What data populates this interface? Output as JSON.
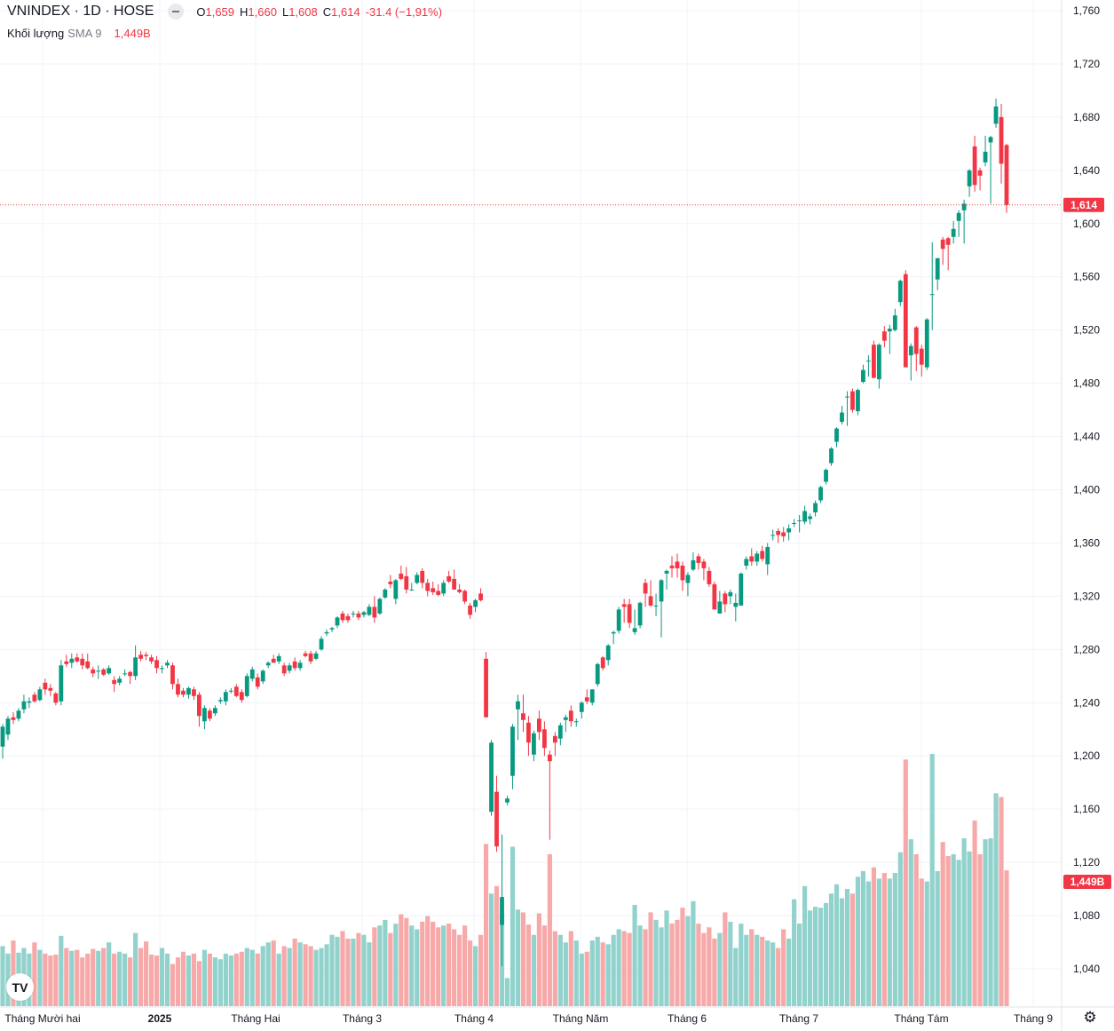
{
  "header": {
    "symbol_line": "VNINDEX · 1D · HOSE",
    "open_label": "O",
    "open": "1,659",
    "high_label": "H",
    "high": "1,660",
    "low_label": "L",
    "low": "1,608",
    "close_label": "C",
    "close": "1,614",
    "change": "-31.4 (−1,91%)"
  },
  "volume_legend": {
    "name": "Khối lượng",
    "sma": "SMA 9",
    "value": "1,449B"
  },
  "icons": {
    "logo": "tradingview-logo",
    "logo_text": "TV",
    "settings": "gear-icon",
    "hide": "minus-icon"
  },
  "colors": {
    "up": "#089981",
    "down": "#f23645",
    "vol_up": "#92d2cc",
    "vol_down": "#f7a9a9",
    "grid": "#f0f3fa"
  },
  "chart_data": {
    "type": "candlestick",
    "title": "VNINDEX · 1D · HOSE",
    "price_axis": {
      "min": 1040,
      "max": 1760,
      "step": 40,
      "tick_labels": [
        "1,760",
        "1,720",
        "1,680",
        "1,640",
        "1,600",
        "1,560",
        "1,520",
        "1,480",
        "1,440",
        "1,400",
        "1,360",
        "1,320",
        "1,280",
        "1,240",
        "1,200",
        "1,160",
        "1,120",
        "1,080",
        "1,040"
      ]
    },
    "x_tick_labels": [
      "Tháng Mười hai",
      "2025",
      "Tháng Hai",
      "Tháng 3",
      "Tháng 4",
      "Tháng Năm",
      "Tháng 6",
      "Tháng 7",
      "Tháng Tám",
      "Tháng 9"
    ],
    "last_price": 1614,
    "last_price_label": "1,614",
    "last_volume_label": "1,449B",
    "volume_unit": "millions",
    "volume_max_axis": 1449,
    "candles_ohlc": [
      [
        1207,
        1224,
        1198,
        1222
      ],
      [
        1216,
        1230,
        1212,
        1228
      ],
      [
        1229,
        1233,
        1224,
        1227
      ],
      [
        1228,
        1236,
        1226,
        1234
      ],
      [
        1235,
        1246,
        1232,
        1241
      ],
      [
        1240,
        1244,
        1236,
        1241
      ],
      [
        1246,
        1248,
        1240,
        1241
      ],
      [
        1242,
        1252,
        1241,
        1250
      ],
      [
        1255,
        1258,
        1246,
        1250
      ],
      [
        1251,
        1254,
        1245,
        1249
      ],
      [
        1247,
        1248,
        1238,
        1240
      ],
      [
        1241,
        1272,
        1238,
        1268
      ],
      [
        1271,
        1276,
        1267,
        1269
      ],
      [
        1270,
        1277,
        1266,
        1273
      ],
      [
        1274,
        1277,
        1270,
        1271
      ],
      [
        1273,
        1277,
        1265,
        1268
      ],
      [
        1271,
        1277,
        1265,
        1266
      ],
      [
        1265,
        1267,
        1259,
        1262
      ],
      [
        1264,
        1268,
        1258,
        1264
      ],
      [
        1265,
        1266,
        1260,
        1261
      ],
      [
        1262,
        1268,
        1261,
        1266
      ],
      [
        1257,
        1260,
        1248,
        1254
      ],
      [
        1255,
        1260,
        1253,
        1258
      ],
      [
        1262,
        1265,
        1260,
        1262
      ],
      [
        1263,
        1264,
        1254,
        1260
      ],
      [
        1260,
        1283,
        1257,
        1274
      ],
      [
        1276,
        1279,
        1271,
        1273
      ],
      [
        1276,
        1278,
        1272,
        1275
      ],
      [
        1274,
        1276,
        1269,
        1271
      ],
      [
        1272,
        1275,
        1262,
        1266
      ],
      [
        1266,
        1268,
        1262,
        1266
      ],
      [
        1268,
        1272,
        1266,
        1270
      ],
      [
        1268,
        1270,
        1250,
        1254
      ],
      [
        1254,
        1258,
        1244,
        1246
      ],
      [
        1249,
        1251,
        1244,
        1246
      ],
      [
        1246,
        1252,
        1243,
        1251
      ],
      [
        1250,
        1252,
        1242,
        1245
      ],
      [
        1246,
        1248,
        1222,
        1230
      ],
      [
        1226,
        1238,
        1220,
        1236
      ],
      [
        1234,
        1236,
        1226,
        1228
      ],
      [
        1232,
        1238,
        1230,
        1236
      ],
      [
        1241,
        1244,
        1239,
        1242
      ],
      [
        1241,
        1250,
        1238,
        1248
      ],
      [
        1249,
        1251,
        1247,
        1249
      ],
      [
        1252,
        1254,
        1244,
        1245
      ],
      [
        1248,
        1250,
        1240,
        1242
      ],
      [
        1245,
        1262,
        1244,
        1260
      ],
      [
        1258,
        1267,
        1256,
        1265
      ],
      [
        1259,
        1262,
        1250,
        1252
      ],
      [
        1256,
        1265,
        1254,
        1264
      ],
      [
        1268,
        1271,
        1266,
        1270
      ],
      [
        1273,
        1276,
        1270,
        1270
      ],
      [
        1271,
        1277,
        1269,
        1275
      ],
      [
        1268,
        1270,
        1260,
        1262
      ],
      [
        1264,
        1270,
        1262,
        1268
      ],
      [
        1271,
        1274,
        1264,
        1266
      ],
      [
        1266,
        1272,
        1264,
        1270
      ],
      [
        1277,
        1279,
        1274,
        1275
      ],
      [
        1277,
        1279,
        1269,
        1271
      ],
      [
        1273,
        1279,
        1272,
        1277
      ],
      [
        1280,
        1290,
        1279,
        1288
      ],
      [
        1292,
        1295,
        1290,
        1293
      ],
      [
        1295,
        1297,
        1293,
        1296
      ],
      [
        1298,
        1305,
        1296,
        1304
      ],
      [
        1307,
        1309,
        1300,
        1302
      ],
      [
        1305,
        1307,
        1300,
        1302
      ],
      [
        1307,
        1309,
        1304,
        1307
      ],
      [
        1307,
        1309,
        1302,
        1304
      ],
      [
        1306,
        1309,
        1304,
        1308
      ],
      [
        1306,
        1314,
        1305,
        1312
      ],
      [
        1312,
        1320,
        1300,
        1304
      ],
      [
        1307,
        1319,
        1306,
        1318
      ],
      [
        1319,
        1326,
        1318,
        1325
      ],
      [
        1331,
        1336,
        1326,
        1329
      ],
      [
        1318,
        1333,
        1314,
        1332
      ],
      [
        1337,
        1343,
        1332,
        1333
      ],
      [
        1335,
        1342,
        1322,
        1325
      ],
      [
        1325,
        1330,
        1324,
        1325
      ],
      [
        1330,
        1338,
        1329,
        1336
      ],
      [
        1339,
        1341,
        1326,
        1330
      ],
      [
        1330,
        1333,
        1320,
        1324
      ],
      [
        1326,
        1331,
        1321,
        1323
      ],
      [
        1324,
        1329,
        1320,
        1321
      ],
      [
        1322,
        1332,
        1320,
        1330
      ],
      [
        1335,
        1339,
        1330,
        1331
      ],
      [
        1333,
        1340,
        1325,
        1325
      ],
      [
        1325,
        1329,
        1322,
        1323
      ],
      [
        1324,
        1325,
        1314,
        1316
      ],
      [
        1313,
        1315,
        1303,
        1306
      ],
      [
        1312,
        1318,
        1308,
        1317
      ],
      [
        1322,
        1326,
        1316,
        1317
      ],
      [
        1273,
        1278,
        1229,
        1229
      ],
      [
        1158,
        1212,
        1155,
        1210
      ],
      [
        1173,
        1185,
        1128,
        1132
      ],
      [
        1073,
        1141,
        1042,
        1094
      ],
      [
        1165,
        1170,
        1163,
        1168
      ],
      [
        1185,
        1224,
        1175,
        1222
      ],
      [
        1235,
        1246,
        1212,
        1241
      ],
      [
        1232,
        1246,
        1218,
        1227
      ],
      [
        1225,
        1230,
        1200,
        1210
      ],
      [
        1201,
        1219,
        1196,
        1217
      ],
      [
        1228,
        1234,
        1212,
        1218
      ],
      [
        1220,
        1226,
        1200,
        1206
      ],
      [
        1201,
        1204,
        1137,
        1196
      ],
      [
        1215,
        1218,
        1200,
        1210
      ],
      [
        1213,
        1225,
        1208,
        1223
      ],
      [
        1227,
        1231,
        1218,
        1229
      ],
      [
        1234,
        1238,
        1222,
        1226
      ],
      [
        1226,
        1228,
        1222,
        1226
      ],
      [
        1233,
        1241,
        1228,
        1240
      ],
      [
        1244,
        1250,
        1239,
        1241
      ],
      [
        1240,
        1250,
        1238,
        1250
      ],
      [
        1254,
        1270,
        1252,
        1269
      ],
      [
        1274,
        1275,
        1264,
        1266
      ],
      [
        1272,
        1284,
        1268,
        1283
      ],
      [
        1292,
        1294,
        1284,
        1293
      ],
      [
        1294,
        1312,
        1292,
        1310
      ],
      [
        1314,
        1318,
        1300,
        1312
      ],
      [
        1314,
        1318,
        1296,
        1300
      ],
      [
        1293,
        1310,
        1291,
        1296
      ],
      [
        1298,
        1316,
        1296,
        1315
      ],
      [
        1330,
        1333,
        1312,
        1322
      ],
      [
        1320,
        1332,
        1312,
        1313
      ],
      [
        1313,
        1322,
        1305,
        1313
      ],
      [
        1316,
        1333,
        1289,
        1332
      ],
      [
        1337,
        1340,
        1325,
        1339
      ],
      [
        1343,
        1350,
        1334,
        1341
      ],
      [
        1346,
        1352,
        1334,
        1341
      ],
      [
        1343,
        1346,
        1324,
        1332
      ],
      [
        1330,
        1338,
        1320,
        1336
      ],
      [
        1340,
        1353,
        1339,
        1347
      ],
      [
        1350,
        1352,
        1340,
        1345
      ],
      [
        1346,
        1348,
        1332,
        1341
      ],
      [
        1339,
        1342,
        1327,
        1329
      ],
      [
        1329,
        1331,
        1310,
        1310
      ],
      [
        1307,
        1324,
        1307,
        1316
      ],
      [
        1322,
        1324,
        1308,
        1314
      ],
      [
        1320,
        1325,
        1314,
        1323
      ],
      [
        1312,
        1322,
        1301,
        1315
      ],
      [
        1313,
        1338,
        1313,
        1337
      ],
      [
        1343,
        1350,
        1340,
        1348
      ],
      [
        1350,
        1356,
        1343,
        1346
      ],
      [
        1346,
        1354,
        1343,
        1352
      ],
      [
        1354,
        1358,
        1346,
        1348
      ],
      [
        1344,
        1360,
        1336,
        1357
      ],
      [
        1366,
        1370,
        1362,
        1366
      ],
      [
        1369,
        1371,
        1360,
        1366
      ],
      [
        1368,
        1372,
        1361,
        1365
      ],
      [
        1368,
        1374,
        1362,
        1371
      ],
      [
        1375,
        1378,
        1372,
        1375
      ],
      [
        1377,
        1381,
        1368,
        1377
      ],
      [
        1376,
        1388,
        1374,
        1384
      ],
      [
        1378,
        1382,
        1374,
        1380
      ],
      [
        1383,
        1392,
        1380,
        1390
      ],
      [
        1392,
        1403,
        1390,
        1402
      ],
      [
        1406,
        1416,
        1404,
        1415
      ],
      [
        1420,
        1432,
        1418,
        1431
      ],
      [
        1436,
        1447,
        1432,
        1446
      ],
      [
        1451,
        1463,
        1449,
        1458
      ],
      [
        1470,
        1474,
        1448,
        1470
      ],
      [
        1474,
        1476,
        1458,
        1460
      ],
      [
        1459,
        1476,
        1456,
        1475
      ],
      [
        1481,
        1494,
        1480,
        1490
      ],
      [
        1497,
        1501,
        1485,
        1497
      ],
      [
        1509,
        1512,
        1484,
        1484
      ],
      [
        1483,
        1510,
        1476,
        1509
      ],
      [
        1519,
        1523,
        1507,
        1512
      ],
      [
        1519,
        1524,
        1502,
        1521
      ],
      [
        1520,
        1536,
        1519,
        1531
      ],
      [
        1541,
        1558,
        1538,
        1557
      ],
      [
        1562,
        1565,
        1492,
        1492
      ],
      [
        1501,
        1510,
        1482,
        1508
      ],
      [
        1522,
        1523,
        1489,
        1502
      ],
      [
        1506,
        1509,
        1485,
        1494
      ],
      [
        1492,
        1529,
        1490,
        1528
      ],
      [
        1547,
        1586,
        1520,
        1547
      ],
      [
        1558,
        1574,
        1550,
        1574
      ],
      [
        1588,
        1590,
        1569,
        1581
      ],
      [
        1589,
        1590,
        1565,
        1584
      ],
      [
        1590,
        1602,
        1585,
        1596
      ],
      [
        1602,
        1610,
        1590,
        1608
      ],
      [
        1610,
        1618,
        1585,
        1615
      ],
      [
        1628,
        1641,
        1620,
        1640
      ],
      [
        1658,
        1666,
        1624,
        1629
      ],
      [
        1640,
        1642,
        1625,
        1636
      ],
      [
        1646,
        1666,
        1643,
        1654
      ],
      [
        1661,
        1666,
        1615,
        1665
      ],
      [
        1675,
        1694,
        1672,
        1688
      ],
      [
        1680,
        1690,
        1630,
        1645
      ],
      [
        1659,
        1660,
        1608,
        1614
      ]
    ],
    "volumes": [
      640,
      560,
      700,
      570,
      620,
      560,
      680,
      600,
      560,
      540,
      550,
      750,
      620,
      590,
      600,
      520,
      560,
      610,
      590,
      620,
      680,
      560,
      580,
      560,
      520,
      780,
      620,
      690,
      550,
      540,
      620,
      560,
      450,
      520,
      580,
      540,
      560,
      480,
      600,
      560,
      520,
      500,
      560,
      540,
      560,
      580,
      620,
      600,
      560,
      640,
      680,
      700,
      560,
      640,
      620,
      720,
      680,
      660,
      640,
      600,
      620,
      660,
      760,
      740,
      800,
      720,
      720,
      780,
      760,
      680,
      840,
      860,
      920,
      780,
      880,
      980,
      940,
      860,
      820,
      900,
      960,
      900,
      840,
      860,
      880,
      820,
      760,
      860,
      700,
      640,
      760,
      1730,
      1200,
      1280,
      980,
      300,
      1700,
      1030,
      1000,
      870,
      760,
      990,
      860,
      1620,
      800,
      760,
      680,
      800,
      700,
      560,
      580,
      700,
      740,
      680,
      660,
      760,
      820,
      800,
      780,
      1080,
      860,
      820,
      1000,
      920,
      840,
      1020,
      880,
      920,
      1050,
      960,
      1120,
      880,
      780,
      840,
      720,
      780,
      1000,
      900,
      620,
      880,
      760,
      820,
      760,
      740,
      700,
      680,
      620,
      820,
      720,
      1140,
      880,
      1280,
      1020,
      1060,
      1050,
      1100,
      1200,
      1300,
      1150,
      1250,
      1200,
      1380,
      1440,
      1330,
      1480,
      1360,
      1420,
      1360,
      1420,
      1640,
      2630,
      1780,
      1620,
      1360,
      1330,
      2690,
      1440,
      1750,
      1600,
      1620,
      1560,
      1790,
      1650,
      1980,
      1620,
      1780,
      1790,
      2270,
      2230,
      1449
    ]
  }
}
